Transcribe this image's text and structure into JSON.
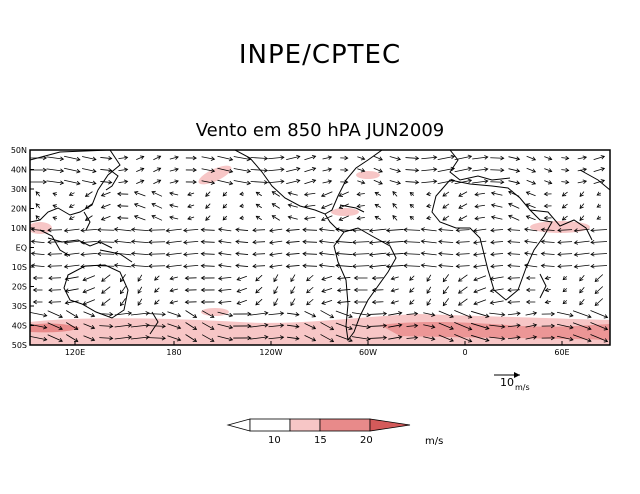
{
  "header": {
    "title": "INPE/CPTEC",
    "subtitle": "Vento em 850 hPA JUN2009"
  },
  "map": {
    "lat_labels": [
      "50N",
      "40N",
      "30N",
      "20N",
      "10N",
      "EQ",
      "10S",
      "20S",
      "30S",
      "40S",
      "50S"
    ],
    "lon_labels": [
      "120E",
      "180",
      "120W",
      "60W",
      "0",
      "60E"
    ],
    "ref_vector": {
      "value": "10",
      "unit": "m/s"
    }
  },
  "colorbar": {
    "ticks": [
      "10",
      "15",
      "20"
    ],
    "unit": "m/s",
    "colors": [
      "#ffffff",
      "#f7c6c6",
      "#e88a8a",
      "#d45a5a"
    ]
  }
}
